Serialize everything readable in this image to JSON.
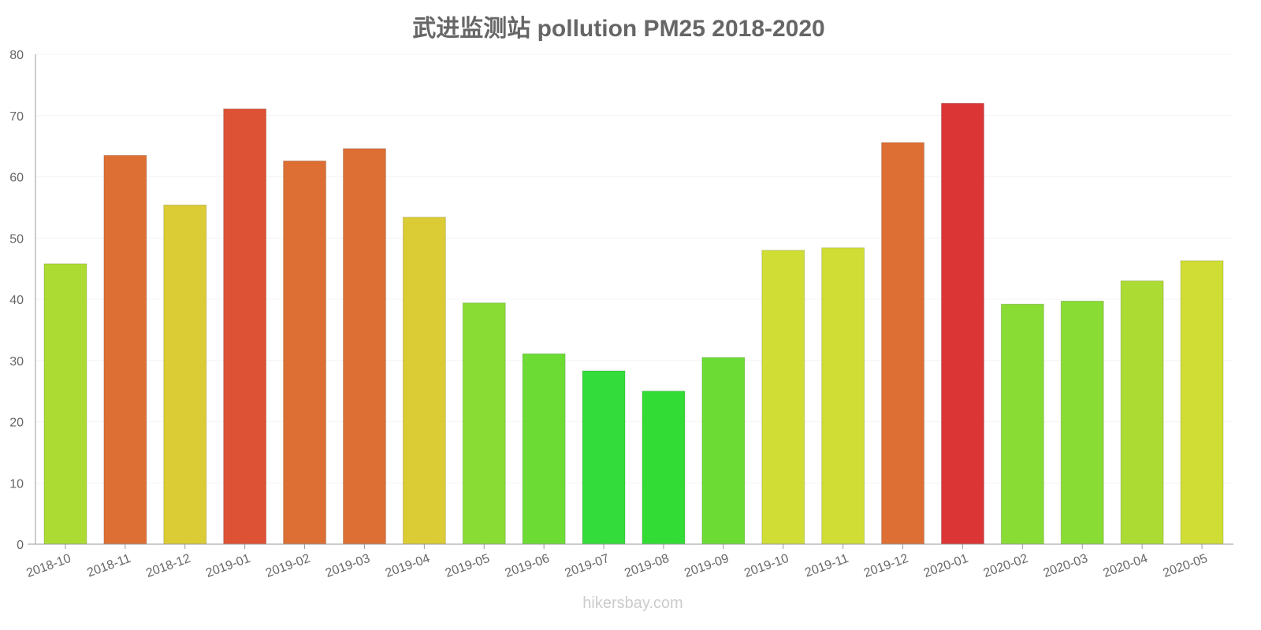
{
  "chart_data": {
    "type": "bar",
    "title": "武进监测站 pollution PM25 2018-2020",
    "xlabel": "",
    "ylabel": "",
    "ylim": [
      0,
      80
    ],
    "yticks": [
      "0",
      "10",
      "20",
      "30",
      "40",
      "50",
      "60",
      "70",
      "80"
    ],
    "grid": true,
    "categories": [
      "2018-10",
      "2018-11",
      "2018-12",
      "2019-01",
      "2019-02",
      "2019-03",
      "2019-04",
      "2019-05",
      "2019-06",
      "2019-07",
      "2019-08",
      "2019-09",
      "2019-10",
      "2019-11",
      "2019-12",
      "2020-01",
      "2020-02",
      "2020-03",
      "2020-04",
      "2020-05"
    ],
    "values": [
      45.8,
      63.5,
      55.4,
      71.1,
      62.6,
      64.6,
      53.4,
      39.4,
      31.1,
      28.3,
      25.0,
      30.5,
      48.0,
      48.4,
      65.6,
      72.0,
      39.2,
      39.7,
      43.0,
      46.3
    ],
    "colors": [
      "#acdc33",
      "#dd6f35",
      "#dbcc35",
      "#dd5235",
      "#dd6f35",
      "#dd6f35",
      "#dbcc35",
      "#88dc33",
      "#6cdc35",
      "#33dc3a",
      "#33dc35",
      "#6cdc35",
      "#cfdd35",
      "#cfdd35",
      "#dd6f35",
      "#dc3535",
      "#88dc33",
      "#88dc33",
      "#acdc33",
      "#cfdd35"
    ]
  },
  "watermark": "hikersbay.com"
}
